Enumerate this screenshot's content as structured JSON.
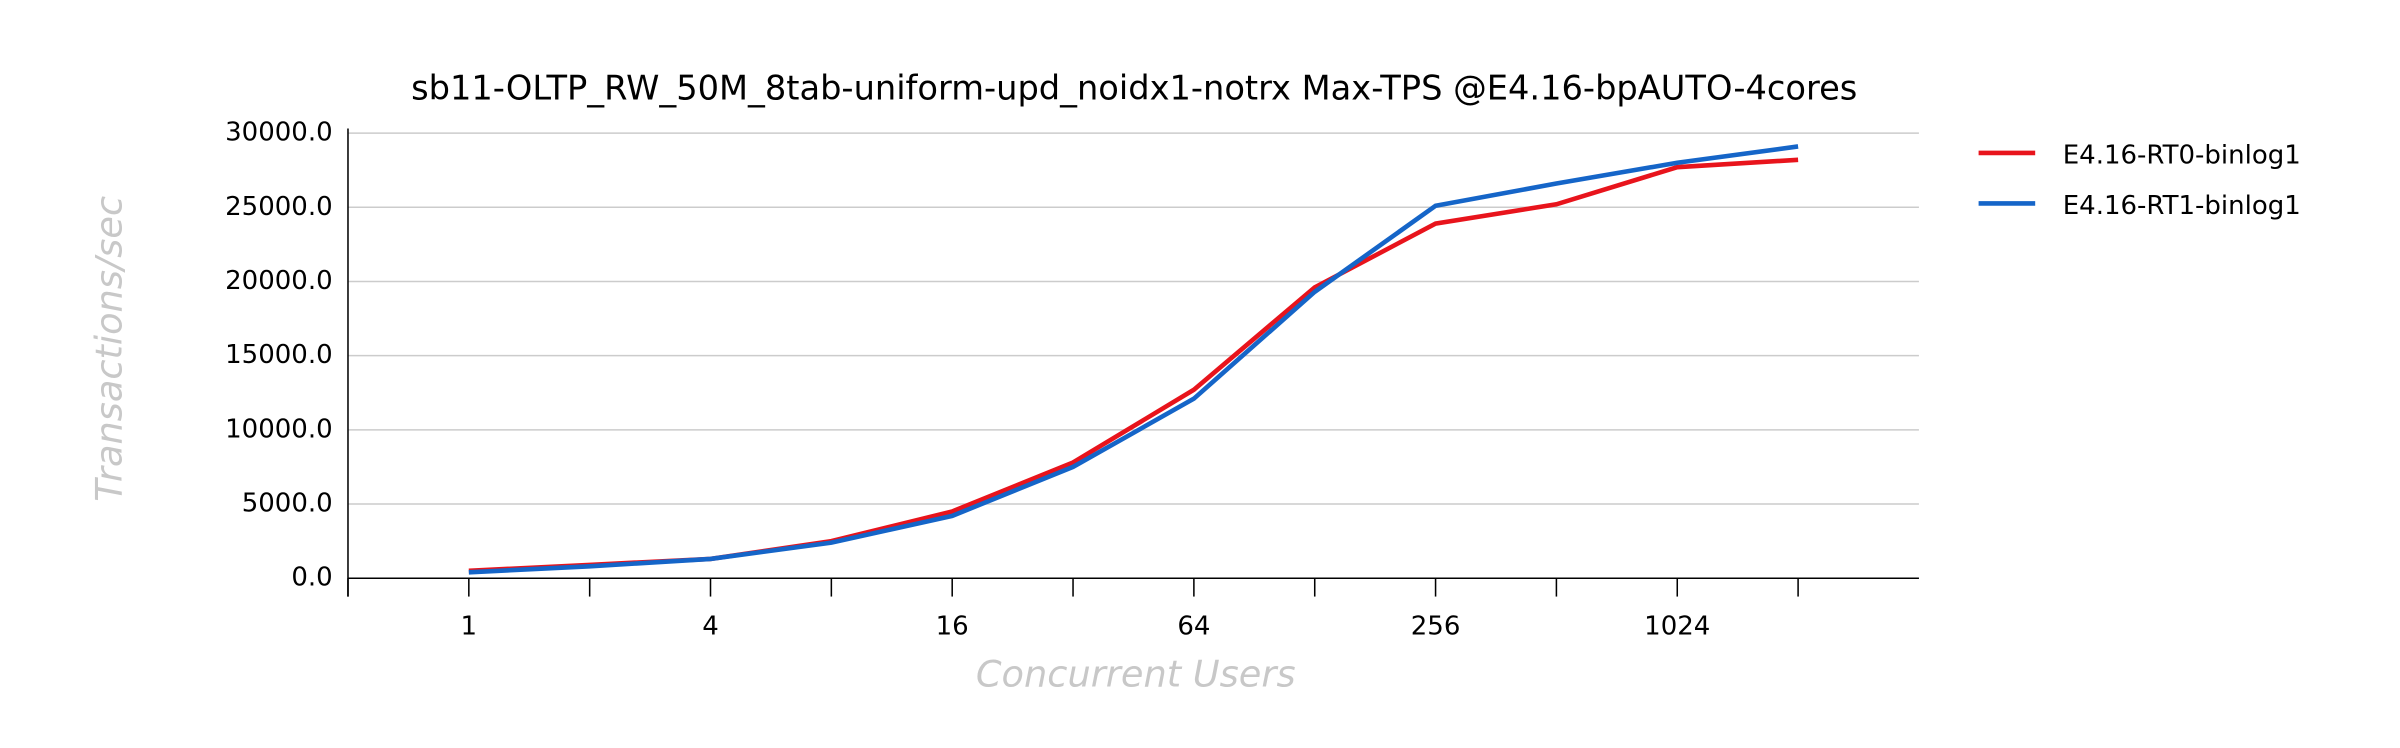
{
  "chart_data": {
    "type": "line",
    "title": "sb11-OLTP_RW_50M_8tab-uniform-upd_noidx1-notrx Max-TPS @E4.16-bpAUTO-4cores",
    "x_label": "Concurrent Users",
    "y_label": "Transactions/sec",
    "categories": [
      "1",
      null,
      "4",
      null,
      "16",
      null,
      "64",
      null,
      "256",
      null,
      "1024",
      null
    ],
    "series": [
      {
        "name": "E4.16-RT0-binlog1",
        "color": "#e8141c",
        "values": [
          500,
          900,
          1300,
          2500,
          4500,
          7800,
          12700,
          19600,
          23900,
          25200,
          27700,
          28200
        ]
      },
      {
        "name": "E4.16-RT1-binlog1",
        "color": "#1565c8",
        "values": [
          400,
          800,
          1300,
          2400,
          4200,
          7500,
          12100,
          19300,
          25100,
          26600,
          28000,
          29100
        ]
      }
    ],
    "ylim": [
      0,
      30000
    ],
    "yticks": [
      {
        "value": 0,
        "label": "0.0"
      },
      {
        "value": 5000,
        "label": "5000.0"
      },
      {
        "value": 10000,
        "label": "10000.0"
      },
      {
        "value": 15000,
        "label": "15000.0"
      },
      {
        "value": 20000,
        "label": "20000.0"
      },
      {
        "value": 25000,
        "label": "25000.0"
      },
      {
        "value": 30000,
        "label": "30000.0"
      }
    ],
    "grid": true,
    "legend": "right"
  }
}
